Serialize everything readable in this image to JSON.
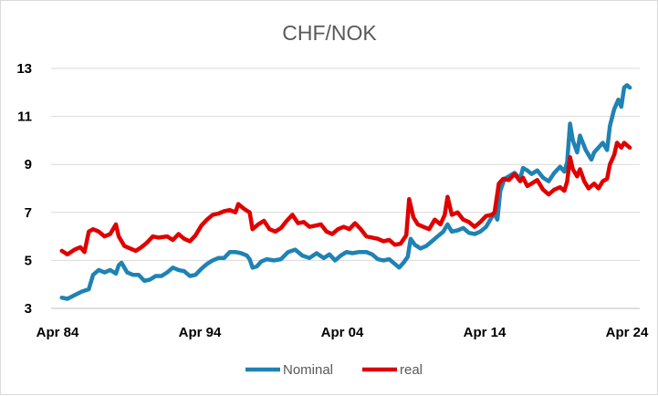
{
  "chart_data": {
    "type": "line",
    "title": "CHF/NOK",
    "xlabel": "",
    "ylabel": "",
    "x_ticks": [
      "Apr 84",
      "Apr 94",
      "Apr 04",
      "Apr 14",
      "Apr 24"
    ],
    "y_ticks": [
      "3",
      "5",
      "7",
      "9",
      "11",
      "13"
    ],
    "xlim": [
      1984.0,
      2024.6
    ],
    "ylim": [
      3,
      13
    ],
    "grid": "horizontal",
    "legend": "bottom",
    "series": [
      {
        "name": "Nominal",
        "color": "#1f82b4",
        "points": [
          [
            1984.6,
            3.45
          ],
          [
            1985.0,
            3.4
          ],
          [
            1985.5,
            3.55
          ],
          [
            1986.0,
            3.7
          ],
          [
            1986.5,
            3.8
          ],
          [
            1986.8,
            4.4
          ],
          [
            1987.2,
            4.6
          ],
          [
            1987.6,
            4.5
          ],
          [
            1988.0,
            4.6
          ],
          [
            1988.4,
            4.45
          ],
          [
            1988.6,
            4.8
          ],
          [
            1988.8,
            4.9
          ],
          [
            1989.2,
            4.5
          ],
          [
            1989.6,
            4.4
          ],
          [
            1990.0,
            4.4
          ],
          [
            1990.4,
            4.15
          ],
          [
            1990.8,
            4.2
          ],
          [
            1991.2,
            4.35
          ],
          [
            1991.6,
            4.35
          ],
          [
            1992.0,
            4.5
          ],
          [
            1992.4,
            4.7
          ],
          [
            1992.8,
            4.6
          ],
          [
            1993.2,
            4.55
          ],
          [
            1993.6,
            4.35
          ],
          [
            1994.0,
            4.4
          ],
          [
            1994.4,
            4.65
          ],
          [
            1994.8,
            4.85
          ],
          [
            1995.2,
            5.0
          ],
          [
            1995.6,
            5.1
          ],
          [
            1996.0,
            5.1
          ],
          [
            1996.4,
            5.35
          ],
          [
            1996.8,
            5.35
          ],
          [
            1997.2,
            5.3
          ],
          [
            1997.6,
            5.2
          ],
          [
            1997.8,
            5.05
          ],
          [
            1998.0,
            4.7
          ],
          [
            1998.3,
            4.75
          ],
          [
            1998.6,
            4.95
          ],
          [
            1999.0,
            5.05
          ],
          [
            1999.5,
            5.0
          ],
          [
            2000.0,
            5.05
          ],
          [
            2000.5,
            5.35
          ],
          [
            2001.0,
            5.45
          ],
          [
            2001.5,
            5.2
          ],
          [
            2002.0,
            5.1
          ],
          [
            2002.5,
            5.3
          ],
          [
            2003.0,
            5.1
          ],
          [
            2003.4,
            5.25
          ],
          [
            2003.8,
            5.0
          ],
          [
            2004.2,
            5.2
          ],
          [
            2004.6,
            5.35
          ],
          [
            2005.0,
            5.3
          ],
          [
            2005.5,
            5.35
          ],
          [
            2006.0,
            5.35
          ],
          [
            2006.4,
            5.25
          ],
          [
            2006.8,
            5.05
          ],
          [
            2007.2,
            5.0
          ],
          [
            2007.6,
            5.05
          ],
          [
            2008.0,
            4.85
          ],
          [
            2008.3,
            4.7
          ],
          [
            2008.6,
            4.9
          ],
          [
            2008.9,
            5.15
          ],
          [
            2009.1,
            5.9
          ],
          [
            2009.4,
            5.65
          ],
          [
            2009.8,
            5.5
          ],
          [
            2010.2,
            5.6
          ],
          [
            2010.6,
            5.8
          ],
          [
            2011.0,
            6.0
          ],
          [
            2011.4,
            6.2
          ],
          [
            2011.7,
            6.5
          ],
          [
            2012.0,
            6.2
          ],
          [
            2012.4,
            6.25
          ],
          [
            2012.8,
            6.35
          ],
          [
            2013.2,
            6.15
          ],
          [
            2013.6,
            6.1
          ],
          [
            2014.0,
            6.2
          ],
          [
            2014.4,
            6.4
          ],
          [
            2014.8,
            6.8
          ],
          [
            2015.0,
            6.95
          ],
          [
            2015.2,
            6.7
          ],
          [
            2015.4,
            7.9
          ],
          [
            2015.7,
            8.4
          ],
          [
            2016.0,
            8.5
          ],
          [
            2016.4,
            8.65
          ],
          [
            2016.8,
            8.4
          ],
          [
            2017.0,
            8.85
          ],
          [
            2017.3,
            8.75
          ],
          [
            2017.6,
            8.6
          ],
          [
            2018.0,
            8.75
          ],
          [
            2018.4,
            8.45
          ],
          [
            2018.8,
            8.3
          ],
          [
            2019.2,
            8.65
          ],
          [
            2019.6,
            8.9
          ],
          [
            2019.9,
            8.7
          ],
          [
            2020.1,
            9.1
          ],
          [
            2020.3,
            10.7
          ],
          [
            2020.5,
            10.0
          ],
          [
            2020.8,
            9.5
          ],
          [
            2021.0,
            10.2
          ],
          [
            2021.4,
            9.6
          ],
          [
            2021.8,
            9.2
          ],
          [
            2022.0,
            9.5
          ],
          [
            2022.3,
            9.7
          ],
          [
            2022.6,
            9.9
          ],
          [
            2022.9,
            9.6
          ],
          [
            2023.1,
            10.6
          ],
          [
            2023.4,
            11.3
          ],
          [
            2023.7,
            11.7
          ],
          [
            2023.9,
            11.4
          ],
          [
            2024.1,
            12.2
          ],
          [
            2024.3,
            12.3
          ],
          [
            2024.5,
            12.2
          ]
        ]
      },
      {
        "name": "real",
        "color": "#e00000",
        "points": [
          [
            1984.6,
            5.4
          ],
          [
            1985.0,
            5.25
          ],
          [
            1985.5,
            5.45
          ],
          [
            1985.9,
            5.55
          ],
          [
            1986.2,
            5.35
          ],
          [
            1986.5,
            6.2
          ],
          [
            1986.8,
            6.3
          ],
          [
            1987.2,
            6.2
          ],
          [
            1987.6,
            6.0
          ],
          [
            1988.0,
            6.1
          ],
          [
            1988.4,
            6.5
          ],
          [
            1988.6,
            6.0
          ],
          [
            1989.0,
            5.6
          ],
          [
            1989.4,
            5.5
          ],
          [
            1989.8,
            5.4
          ],
          [
            1990.2,
            5.55
          ],
          [
            1990.6,
            5.75
          ],
          [
            1991.0,
            6.0
          ],
          [
            1991.4,
            5.95
          ],
          [
            1992.0,
            6.0
          ],
          [
            1992.4,
            5.85
          ],
          [
            1992.8,
            6.1
          ],
          [
            1993.2,
            5.9
          ],
          [
            1993.6,
            5.8
          ],
          [
            1994.0,
            6.05
          ],
          [
            1994.4,
            6.45
          ],
          [
            1994.8,
            6.7
          ],
          [
            1995.2,
            6.9
          ],
          [
            1995.6,
            6.95
          ],
          [
            1996.0,
            7.05
          ],
          [
            1996.4,
            7.1
          ],
          [
            1996.8,
            7.0
          ],
          [
            1997.0,
            7.35
          ],
          [
            1997.4,
            7.15
          ],
          [
            1997.8,
            7.0
          ],
          [
            1998.0,
            6.3
          ],
          [
            1998.4,
            6.5
          ],
          [
            1998.8,
            6.65
          ],
          [
            1999.2,
            6.3
          ],
          [
            1999.6,
            6.2
          ],
          [
            2000.0,
            6.35
          ],
          [
            2000.4,
            6.65
          ],
          [
            2000.8,
            6.9
          ],
          [
            2001.2,
            6.55
          ],
          [
            2001.6,
            6.6
          ],
          [
            2002.0,
            6.4
          ],
          [
            2002.4,
            6.45
          ],
          [
            2002.8,
            6.5
          ],
          [
            2003.2,
            6.2
          ],
          [
            2003.6,
            6.1
          ],
          [
            2004.0,
            6.3
          ],
          [
            2004.4,
            6.4
          ],
          [
            2004.8,
            6.3
          ],
          [
            2005.2,
            6.55
          ],
          [
            2005.6,
            6.3
          ],
          [
            2006.0,
            6.0
          ],
          [
            2006.4,
            5.95
          ],
          [
            2006.8,
            5.9
          ],
          [
            2007.2,
            5.8
          ],
          [
            2007.6,
            5.85
          ],
          [
            2008.0,
            5.65
          ],
          [
            2008.4,
            5.7
          ],
          [
            2008.8,
            6.05
          ],
          [
            2009.0,
            7.55
          ],
          [
            2009.3,
            6.8
          ],
          [
            2009.6,
            6.5
          ],
          [
            2010.0,
            6.4
          ],
          [
            2010.4,
            6.3
          ],
          [
            2010.8,
            6.7
          ],
          [
            2011.2,
            6.5
          ],
          [
            2011.5,
            6.9
          ],
          [
            2011.7,
            7.65
          ],
          [
            2012.0,
            6.9
          ],
          [
            2012.4,
            7.0
          ],
          [
            2012.8,
            6.7
          ],
          [
            2013.2,
            6.6
          ],
          [
            2013.6,
            6.4
          ],
          [
            2014.0,
            6.6
          ],
          [
            2014.4,
            6.85
          ],
          [
            2014.8,
            6.9
          ],
          [
            2015.0,
            7.0
          ],
          [
            2015.3,
            8.2
          ],
          [
            2015.6,
            8.4
          ],
          [
            2016.0,
            8.35
          ],
          [
            2016.4,
            8.6
          ],
          [
            2016.8,
            8.3
          ],
          [
            2017.0,
            8.45
          ],
          [
            2017.3,
            8.1
          ],
          [
            2017.6,
            8.2
          ],
          [
            2018.0,
            8.35
          ],
          [
            2018.4,
            7.95
          ],
          [
            2018.8,
            7.75
          ],
          [
            2019.2,
            7.95
          ],
          [
            2019.6,
            8.05
          ],
          [
            2019.9,
            7.9
          ],
          [
            2020.1,
            8.3
          ],
          [
            2020.3,
            9.3
          ],
          [
            2020.5,
            8.8
          ],
          [
            2020.8,
            8.5
          ],
          [
            2021.0,
            8.8
          ],
          [
            2021.3,
            8.3
          ],
          [
            2021.6,
            8.0
          ],
          [
            2022.0,
            8.2
          ],
          [
            2022.3,
            8.0
          ],
          [
            2022.6,
            8.3
          ],
          [
            2022.9,
            8.4
          ],
          [
            2023.1,
            9.0
          ],
          [
            2023.4,
            9.4
          ],
          [
            2023.6,
            9.9
          ],
          [
            2023.9,
            9.7
          ],
          [
            2024.1,
            9.9
          ],
          [
            2024.3,
            9.8
          ],
          [
            2024.5,
            9.7
          ]
        ]
      }
    ]
  }
}
